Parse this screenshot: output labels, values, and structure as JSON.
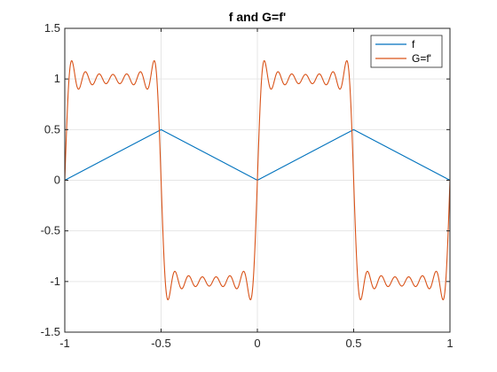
{
  "chart_data": {
    "type": "line",
    "title": "f and G=f'",
    "xlabel": "",
    "ylabel": "",
    "xlim": [
      -1,
      1
    ],
    "ylim": [
      -1.5,
      1.5
    ],
    "x_ticks": [
      -1,
      -0.5,
      0,
      0.5,
      1
    ],
    "y_ticks": [
      -1.5,
      -1,
      -0.5,
      0,
      0.5,
      1,
      1.5
    ],
    "x_tick_labels": [
      "-1",
      "-0.5",
      "0",
      "0.5",
      "1"
    ],
    "y_tick_labels": [
      "-1.5",
      "-1",
      "-0.5",
      "0",
      "0.5",
      "1",
      "1.5"
    ],
    "grid": true,
    "legend_position": "top-right",
    "series": [
      {
        "name": "f",
        "color": "#0072BD",
        "x": [
          -1,
          -0.5,
          0,
          0.5,
          1
        ],
        "y": [
          0,
          0.5,
          0,
          0.5,
          0
        ]
      },
      {
        "name": "G=f'",
        "color": "#D95319",
        "kind": "fourier-square-wave",
        "period": 1,
        "amplitude": 1,
        "harmonics": 13,
        "samples": 1200,
        "x_range": [
          -1,
          1
        ]
      }
    ]
  }
}
